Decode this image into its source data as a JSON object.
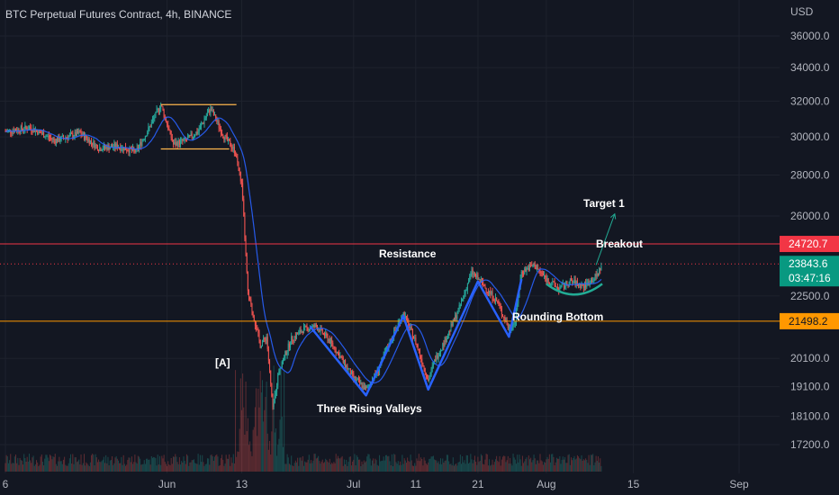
{
  "header": {
    "title": "BTC Perpetual Futures Contract, 4h, BINANCE",
    "currency": "USD"
  },
  "colors": {
    "background": "#131722",
    "up_candle": "#26a69a",
    "down_candle": "#ef5350",
    "resistance": "#f23645",
    "support": "#ff9800",
    "pattern": "#2962ff",
    "rounding": "#22ab94",
    "moving_average": "#2962ff",
    "breakout_arrow": "#22ab94",
    "last_price_bg": "#089981"
  },
  "chart_data": {
    "type": "candlestick",
    "title": "BTC Perpetual Futures Contract, 4h, BINANCE",
    "y_axis": {
      "unit": "USD",
      "scale": "log",
      "range": [
        16900,
        38500
      ],
      "ticks": [
        36000.0,
        34000.0,
        32000.0,
        30000.0,
        28000.0,
        26000.0,
        22500.0,
        20100.0,
        19100.0,
        18100.0,
        17200.0
      ],
      "tick_labels": [
        "36000.0",
        "34000.0",
        "32000.0",
        "30000.0",
        "28000.0",
        "26000.0",
        "22500.0",
        "20100.0",
        "19100.0",
        "18100.0",
        "17200.0"
      ]
    },
    "x_axis": {
      "ticks": [
        {
          "label": "6",
          "date": "2022-05-06"
        },
        {
          "label": "Jun",
          "date": "2022-06-01"
        },
        {
          "label": "13",
          "date": "2022-06-13"
        },
        {
          "label": "Jul",
          "date": "2022-07-01"
        },
        {
          "label": "11",
          "date": "2022-07-11"
        },
        {
          "label": "21",
          "date": "2022-07-21"
        },
        {
          "label": "Aug",
          "date": "2022-08-01"
        },
        {
          "label": "15",
          "date": "2022-08-15"
        },
        {
          "label": "Sep",
          "date": "2022-09-01"
        }
      ]
    },
    "price_path": [
      [
        "2022-05-06",
        30300
      ],
      [
        "2022-05-10",
        30500
      ],
      [
        "2022-05-14",
        29800
      ],
      [
        "2022-05-18",
        30200
      ],
      [
        "2022-05-21",
        29400
      ],
      [
        "2022-05-24",
        29500
      ],
      [
        "2022-05-27",
        29200
      ],
      [
        "2022-05-29",
        30400
      ],
      [
        "2022-05-31",
        31800
      ],
      [
        "2022-06-02",
        29600
      ],
      [
        "2022-06-04",
        29800
      ],
      [
        "2022-06-06",
        30300
      ],
      [
        "2022-06-08",
        31600
      ],
      [
        "2022-06-10",
        30100
      ],
      [
        "2022-06-12",
        29200
      ],
      [
        "2022-06-13",
        27500
      ],
      [
        "2022-06-14",
        22600
      ],
      [
        "2022-06-15",
        21600
      ],
      [
        "2022-06-16",
        20600
      ],
      [
        "2022-06-17",
        20900
      ],
      [
        "2022-06-18",
        18300
      ],
      [
        "2022-06-19",
        19700
      ],
      [
        "2022-06-21",
        20800
      ],
      [
        "2022-06-23",
        21200
      ],
      [
        "2022-06-25",
        21300
      ],
      [
        "2022-06-27",
        20800
      ],
      [
        "2022-06-29",
        20100
      ],
      [
        "2022-07-01",
        19400
      ],
      [
        "2022-07-03",
        19000
      ],
      [
        "2022-07-05",
        19700
      ],
      [
        "2022-07-07",
        20800
      ],
      [
        "2022-07-09",
        21800
      ],
      [
        "2022-07-11",
        20700
      ],
      [
        "2022-07-13",
        19300
      ],
      [
        "2022-07-14",
        20000
      ],
      [
        "2022-07-16",
        20900
      ],
      [
        "2022-07-18",
        22000
      ],
      [
        "2022-07-20",
        23500
      ],
      [
        "2022-07-22",
        22900
      ],
      [
        "2022-07-24",
        22300
      ],
      [
        "2022-07-26",
        21200
      ],
      [
        "2022-07-27",
        21500
      ],
      [
        "2022-07-28",
        23500
      ],
      [
        "2022-07-30",
        23800
      ],
      [
        "2022-08-01",
        23200
      ],
      [
        "2022-08-03",
        22800
      ],
      [
        "2022-08-05",
        23100
      ],
      [
        "2022-08-07",
        22900
      ],
      [
        "2022-08-09",
        23300
      ],
      [
        "2022-08-10",
        23843.6
      ]
    ],
    "horizontal_lines": [
      {
        "name": "resistance",
        "value": 24720.7,
        "label": "24720.7"
      },
      {
        "name": "support",
        "value": 21498.2,
        "label": "21498.2"
      }
    ],
    "last_price": {
      "value": 23843.6,
      "label": "23843.6",
      "countdown": "03:47:16"
    },
    "annotations": {
      "resistance": "Resistance",
      "three_rising_valleys": "Three Rising Valleys",
      "rounding_bottom": "Rounding Bottom",
      "breakout": "Breakout",
      "target": "Target 1",
      "marker": "[A]"
    },
    "consolidation_box": {
      "start": "2022-05-31",
      "end": "2022-06-11",
      "high": 31800,
      "low": 29350
    },
    "three_rising_valleys": [
      [
        "2022-06-24",
        21300
      ],
      [
        "2022-07-03",
        18800
      ],
      [
        "2022-07-09",
        21700
      ],
      [
        "2022-07-13",
        19000
      ],
      [
        "2022-07-21",
        23100
      ],
      [
        "2022-07-26",
        20900
      ],
      [
        "2022-07-28",
        23200
      ]
    ],
    "rounding_bottom": {
      "start": "2022-08-01",
      "end": "2022-08-10",
      "bottom": 22600,
      "edge": 23000
    },
    "breakout_arrow": {
      "from": [
        "2022-08-09",
        23800
      ],
      "to": [
        "2022-08-12",
        26100
      ]
    }
  }
}
